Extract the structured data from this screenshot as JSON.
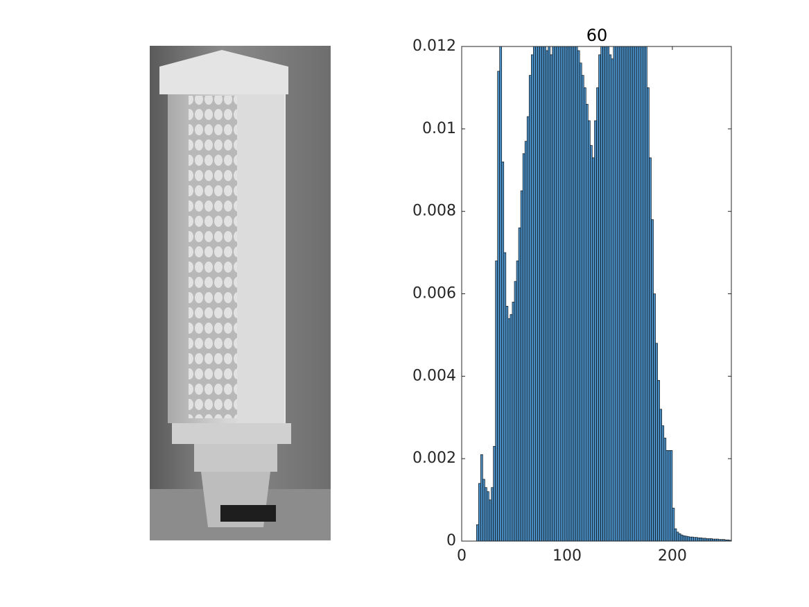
{
  "chart_data": {
    "type": "histogram",
    "title": "60",
    "bins": [
      0,
      2,
      4,
      6,
      8,
      10,
      12,
      14,
      16,
      18,
      20,
      22,
      24,
      26,
      28,
      30,
      32,
      34,
      36,
      38,
      40,
      42,
      44,
      46,
      48,
      50,
      52,
      54,
      56,
      58,
      60,
      62,
      64,
      66,
      68,
      70,
      72,
      74,
      76,
      78,
      80,
      82,
      84,
      86,
      88,
      90,
      92,
      94,
      96,
      98,
      100,
      102,
      104,
      106,
      108,
      110,
      112,
      114,
      116,
      118,
      120,
      122,
      124,
      126,
      128,
      130,
      132,
      134,
      136,
      138,
      140,
      142,
      144,
      146,
      148,
      150,
      152,
      154,
      156,
      158,
      160,
      162,
      164,
      166,
      168,
      170,
      172,
      174,
      176,
      178,
      180,
      182,
      184,
      186,
      188,
      190,
      192,
      194,
      196,
      198,
      200,
      202,
      204,
      206,
      208,
      210,
      212,
      214,
      216,
      218,
      220,
      222,
      224,
      226,
      228,
      230,
      232,
      234,
      236,
      238,
      240,
      242,
      244,
      246,
      248,
      250,
      252,
      254,
      256
    ],
    "counts": [
      0,
      0,
      0,
      0,
      0,
      0,
      0,
      0.0004,
      0.0014,
      0.0021,
      0.0015,
      0.0013,
      0.0012,
      0.001,
      0.0013,
      0.0023,
      0.0068,
      0.0114,
      0.013,
      0.0092,
      0.007,
      0.0057,
      0.0054,
      0.0055,
      0.0058,
      0.0063,
      0.0068,
      0.0076,
      0.0085,
      0.0094,
      0.0097,
      0.0103,
      0.0113,
      0.0118,
      0.013,
      0.013,
      0.013,
      0.013,
      0.013,
      0.0122,
      0.0119,
      0.0121,
      0.0118,
      0.0121,
      0.013,
      0.013,
      0.013,
      0.013,
      0.013,
      0.013,
      0.013,
      0.013,
      0.0125,
      0.013,
      0.0122,
      0.0119,
      0.0116,
      0.0113,
      0.011,
      0.0106,
      0.0102,
      0.0096,
      0.0093,
      0.0102,
      0.011,
      0.0118,
      0.013,
      0.0122,
      0.0121,
      0.0125,
      0.0118,
      0.0117,
      0.013,
      0.013,
      0.013,
      0.013,
      0.013,
      0.013,
      0.013,
      0.013,
      0.013,
      0.013,
      0.013,
      0.013,
      0.013,
      0.013,
      0.013,
      0.0125,
      0.011,
      0.0093,
      0.0078,
      0.006,
      0.0048,
      0.0039,
      0.0032,
      0.0028,
      0.0025,
      0.0022,
      0.0022,
      0.0022,
      0.0008,
      0.0003,
      0.00022,
      0.00018,
      0.00015,
      0.00013,
      0.00012,
      0.00011,
      0.0001,
      0.0001,
      9e-05,
      9e-05,
      8e-05,
      8e-05,
      7e-05,
      7e-05,
      6e-05,
      6e-05,
      6e-05,
      5e-05,
      5e-05,
      5e-05,
      4e-05,
      4e-05,
      4e-05,
      3e-05,
      3e-05,
      2e-05
    ],
    "color": "#4a8cc0",
    "xlim": [
      0,
      256
    ],
    "xticks": [
      0,
      100,
      200
    ],
    "ylim": [
      0,
      0.012
    ],
    "yticks": [
      0,
      0.002,
      0.004,
      0.006,
      0.008,
      0.01,
      0.012
    ]
  }
}
